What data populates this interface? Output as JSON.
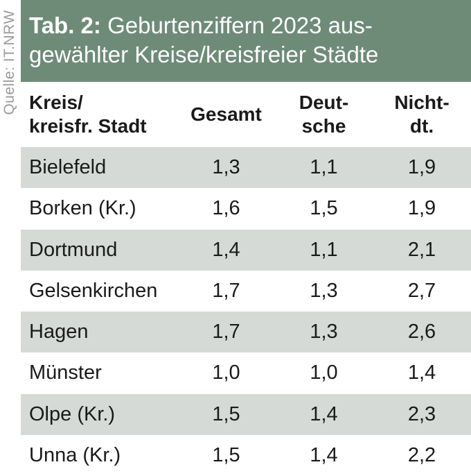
{
  "source": "Quelle: IT.NRW",
  "title": {
    "prefix": "Tab. 2:",
    "line1_rest": " Geburtenziffern 2023 aus-",
    "line2": "gewählter Kreise/kreisfreier Städte"
  },
  "table": {
    "headers": [
      "Kreis/\nkreisfr. Stadt",
      "Gesamt",
      "Deut-\nsche",
      "Nicht-\ndt."
    ],
    "rows": [
      [
        "Bielefeld",
        "1,3",
        "1,1",
        "1,9"
      ],
      [
        "Borken (Kr.)",
        "1,6",
        "1,5",
        "1,9"
      ],
      [
        "Dortmund",
        "1,4",
        "1,1",
        "2,1"
      ],
      [
        "Gelsenkirchen",
        "1,7",
        "1,3",
        "2,7"
      ],
      [
        "Hagen",
        "1,7",
        "1,3",
        "2,6"
      ],
      [
        "Münster",
        "1,0",
        "1,0",
        "1,4"
      ],
      [
        "Olpe (Kr.)",
        "1,5",
        "1,4",
        "2,3"
      ],
      [
        "Unna (Kr.)",
        "1,5",
        "1,4",
        "2,2"
      ]
    ]
  },
  "colors": {
    "title_bg": "#6e8b78",
    "row_shade": "#d5dad6",
    "source_text": "#9a9a9a"
  }
}
